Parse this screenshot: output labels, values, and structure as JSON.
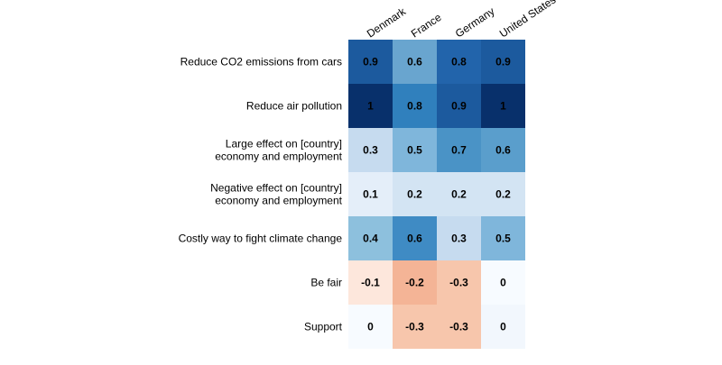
{
  "chart_data": {
    "type": "heatmap",
    "columns": [
      "Denmark",
      "France",
      "Germany",
      "United States"
    ],
    "rows": [
      [
        "Reduce CO2 emissions from cars"
      ],
      [
        "Reduce air pollution"
      ],
      [
        "Large effect on [country]",
        "economy and employment"
      ],
      [
        "Negative effect on [country]",
        "economy and employment"
      ],
      [
        "Costly way to fight climate change"
      ],
      [
        "Be fair"
      ],
      [
        "Support"
      ]
    ],
    "values": [
      [
        0.9,
        0.6,
        0.8,
        0.9
      ],
      [
        1,
        0.8,
        0.9,
        1
      ],
      [
        0.3,
        0.5,
        0.7,
        0.6
      ],
      [
        0.1,
        0.2,
        0.2,
        0.2
      ],
      [
        0.4,
        0.6,
        0.3,
        0.5
      ],
      [
        -0.1,
        -0.2,
        -0.3,
        0
      ],
      [
        0,
        -0.3,
        -0.3,
        0
      ]
    ],
    "cell_colors": [
      [
        "#1c5a9e",
        "#69a5cf",
        "#2264ab",
        "#1c5a9e"
      ],
      [
        "#08306b",
        "#3080bd",
        "#1c5a9e",
        "#08306b"
      ],
      [
        "#c6dbef",
        "#7fb6db",
        "#4a93c6",
        "#5a9ecc"
      ],
      [
        "#e4eef9",
        "#d3e4f3",
        "#d3e4f3",
        "#d3e4f3"
      ],
      [
        "#8dc0dd",
        "#3f8bc4",
        "#c6dbef",
        "#7fb6db"
      ],
      [
        "#fde7dc",
        "#f4b496",
        "#f7c6ac",
        "#f7fbff"
      ],
      [
        "#f7fbff",
        "#f7c6ac",
        "#f7c6ac",
        "#f2f7fd"
      ]
    ],
    "colormap": "blue-positive / red-negative diverging",
    "legend": "none",
    "grid": false
  }
}
